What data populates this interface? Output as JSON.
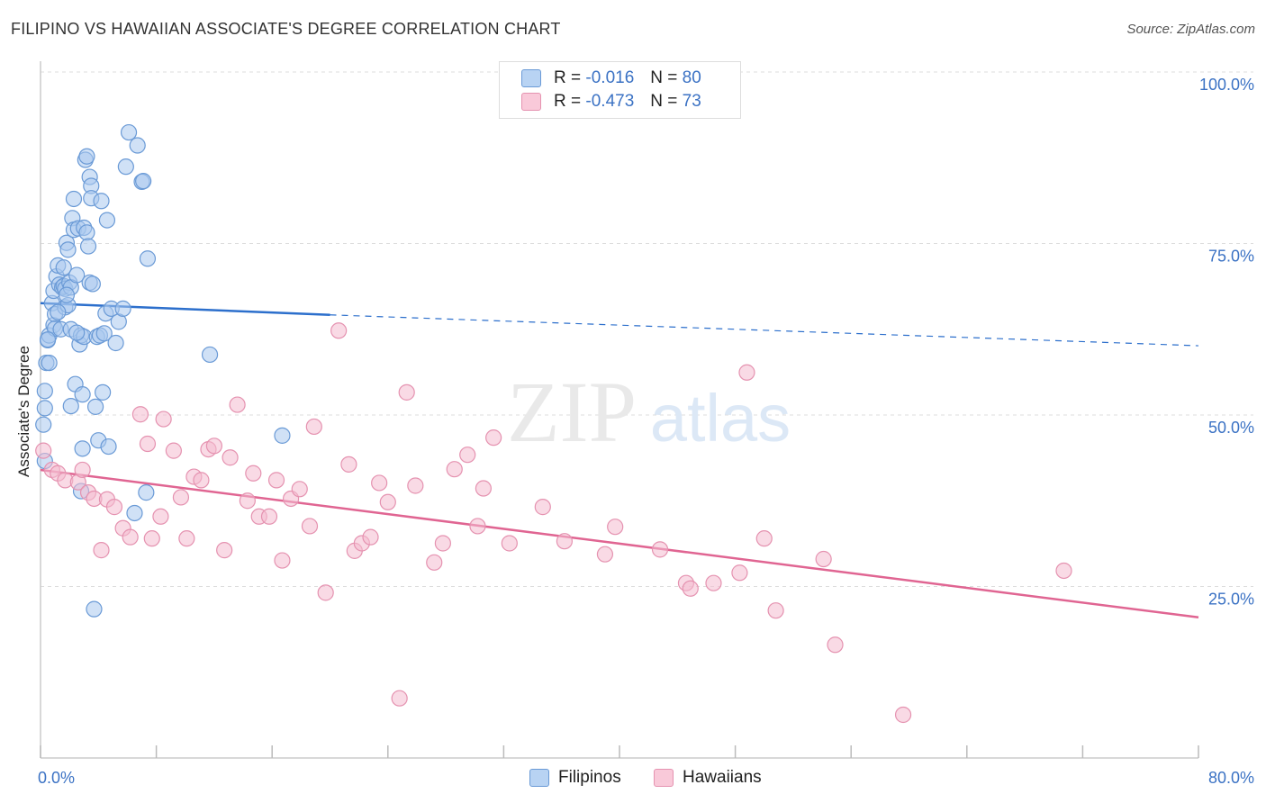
{
  "title": "FILIPINO VS HAWAIIAN ASSOCIATE'S DEGREE CORRELATION CHART",
  "source": "Source: ZipAtlas.com",
  "watermark": {
    "zip": "ZIP",
    "atlas": "atlas"
  },
  "legend": {
    "rows": [
      {
        "r_label": "R =",
        "r_value": "-0.016",
        "n_label": "N =",
        "n_value": "80"
      },
      {
        "r_label": "R =",
        "r_value": "-0.473",
        "n_label": "N =",
        "n_value": "73"
      }
    ]
  },
  "colors": {
    "blue_fill": "#a9c8ef",
    "blue_stroke": "#6a9ad6",
    "blue_line": "#2c6fcc",
    "pink_fill": "#f4bcd0",
    "pink_stroke": "#e592b0",
    "pink_line": "#e06592",
    "axis_text": "#3b72c4",
    "grid": "#dddddd"
  },
  "chart_data": {
    "type": "scatter",
    "title": "FILIPINO VS HAWAIIAN ASSOCIATE'S DEGREE CORRELATION CHART",
    "xlabel": "",
    "ylabel": "Associate's Degree",
    "xlim": [
      0,
      80
    ],
    "ylim": [
      0,
      100
    ],
    "x_tick_labels": [
      "0.0%",
      "80.0%"
    ],
    "y_tick_labels": [
      "25.0%",
      "50.0%",
      "75.0%",
      "100.0%"
    ],
    "y_ticks": [
      25,
      50,
      75,
      100
    ],
    "legend_position": "top-center",
    "series": [
      {
        "name": "Filipinos",
        "r": -0.016,
        "n": 80,
        "trend": {
          "x0": 0,
          "y0": 66.3,
          "x1": 20,
          "y1": 64.6,
          "dash_to_x": 80,
          "dash_to_y": 60.1
        },
        "points": [
          [
            0.2,
            48.6
          ],
          [
            0.3,
            43.3
          ],
          [
            0.3,
            51.0
          ],
          [
            0.3,
            53.5
          ],
          [
            0.4,
            57.6
          ],
          [
            0.5,
            60.9
          ],
          [
            0.6,
            61.6
          ],
          [
            0.6,
            57.6
          ],
          [
            0.8,
            66.3
          ],
          [
            0.9,
            68.1
          ],
          [
            0.9,
            63.1
          ],
          [
            1.0,
            64.7
          ],
          [
            1.0,
            62.6
          ],
          [
            1.1,
            70.2
          ],
          [
            1.2,
            71.8
          ],
          [
            1.3,
            69.0
          ],
          [
            1.4,
            62.5
          ],
          [
            1.5,
            68.6
          ],
          [
            1.6,
            71.5
          ],
          [
            1.6,
            68.8
          ],
          [
            1.7,
            65.7
          ],
          [
            1.7,
            68.4
          ],
          [
            1.8,
            75.1
          ],
          [
            1.9,
            74.1
          ],
          [
            1.9,
            66.0
          ],
          [
            2.0,
            69.3
          ],
          [
            2.1,
            68.6
          ],
          [
            2.1,
            62.5
          ],
          [
            2.1,
            51.3
          ],
          [
            2.2,
            78.7
          ],
          [
            2.3,
            81.5
          ],
          [
            2.3,
            77.0
          ],
          [
            2.4,
            54.5
          ],
          [
            2.5,
            70.4
          ],
          [
            2.6,
            77.2
          ],
          [
            2.7,
            60.3
          ],
          [
            2.8,
            61.6
          ],
          [
            2.8,
            38.9
          ],
          [
            2.9,
            53.0
          ],
          [
            2.9,
            45.1
          ],
          [
            3.0,
            77.3
          ],
          [
            3.0,
            61.4
          ],
          [
            3.1,
            87.2
          ],
          [
            3.2,
            87.7
          ],
          [
            3.2,
            76.6
          ],
          [
            3.3,
            74.6
          ],
          [
            3.4,
            69.3
          ],
          [
            3.4,
            84.7
          ],
          [
            3.5,
            83.4
          ],
          [
            3.5,
            81.6
          ],
          [
            3.6,
            69.1
          ],
          [
            3.7,
            21.7
          ],
          [
            3.8,
            51.2
          ],
          [
            3.9,
            61.4
          ],
          [
            4.0,
            46.3
          ],
          [
            4.1,
            61.6
          ],
          [
            4.2,
            81.2
          ],
          [
            4.3,
            53.3
          ],
          [
            4.4,
            61.9
          ],
          [
            4.5,
            64.8
          ],
          [
            4.6,
            78.4
          ],
          [
            4.7,
            45.4
          ],
          [
            4.9,
            65.5
          ],
          [
            5.2,
            60.5
          ],
          [
            5.4,
            63.6
          ],
          [
            5.7,
            65.5
          ],
          [
            5.9,
            86.2
          ],
          [
            6.1,
            91.2
          ],
          [
            6.5,
            35.7
          ],
          [
            6.7,
            89.3
          ],
          [
            7.0,
            84.0
          ],
          [
            7.1,
            84.1
          ],
          [
            7.3,
            38.7
          ],
          [
            7.4,
            72.8
          ],
          [
            11.7,
            58.8
          ],
          [
            16.7,
            47.0
          ],
          [
            0.5,
            61.0
          ],
          [
            1.2,
            65.0
          ],
          [
            2.5,
            62.0
          ],
          [
            1.8,
            67.5
          ]
        ]
      },
      {
        "name": "Hawaiians",
        "r": -0.473,
        "n": 73,
        "trend": {
          "x0": 0,
          "y0": 42.0,
          "x1": 80,
          "y1": 20.5
        },
        "points": [
          [
            0.2,
            44.8
          ],
          [
            0.8,
            42.0
          ],
          [
            1.2,
            41.5
          ],
          [
            1.7,
            40.5
          ],
          [
            2.6,
            40.2
          ],
          [
            2.9,
            42.0
          ],
          [
            3.3,
            38.7
          ],
          [
            3.7,
            37.8
          ],
          [
            4.2,
            30.3
          ],
          [
            4.6,
            37.7
          ],
          [
            5.1,
            36.6
          ],
          [
            5.7,
            33.5
          ],
          [
            6.2,
            32.2
          ],
          [
            6.9,
            50.1
          ],
          [
            7.4,
            45.8
          ],
          [
            7.7,
            32.0
          ],
          [
            8.3,
            35.2
          ],
          [
            8.5,
            49.4
          ],
          [
            9.2,
            44.8
          ],
          [
            9.7,
            38.0
          ],
          [
            10.1,
            32.0
          ],
          [
            10.6,
            41.0
          ],
          [
            11.1,
            40.5
          ],
          [
            11.6,
            45.0
          ],
          [
            12.0,
            45.5
          ],
          [
            12.7,
            30.3
          ],
          [
            13.1,
            43.8
          ],
          [
            13.6,
            51.5
          ],
          [
            14.3,
            37.5
          ],
          [
            14.7,
            41.5
          ],
          [
            15.1,
            35.2
          ],
          [
            15.8,
            35.2
          ],
          [
            16.3,
            40.5
          ],
          [
            16.7,
            28.8
          ],
          [
            17.3,
            37.8
          ],
          [
            17.9,
            39.2
          ],
          [
            18.6,
            33.8
          ],
          [
            18.9,
            48.3
          ],
          [
            19.7,
            24.1
          ],
          [
            20.6,
            62.3
          ],
          [
            21.3,
            42.8
          ],
          [
            21.7,
            30.2
          ],
          [
            22.2,
            31.3
          ],
          [
            22.8,
            32.2
          ],
          [
            23.4,
            40.1
          ],
          [
            24.0,
            37.3
          ],
          [
            24.8,
            8.7
          ],
          [
            25.3,
            53.3
          ],
          [
            25.9,
            39.7
          ],
          [
            27.2,
            28.5
          ],
          [
            27.8,
            31.3
          ],
          [
            28.6,
            42.1
          ],
          [
            29.5,
            44.2
          ],
          [
            30.2,
            33.8
          ],
          [
            30.6,
            39.3
          ],
          [
            31.3,
            46.7
          ],
          [
            32.4,
            31.3
          ],
          [
            34.7,
            36.6
          ],
          [
            36.2,
            31.6
          ],
          [
            39.0,
            29.7
          ],
          [
            39.7,
            33.7
          ],
          [
            42.8,
            30.4
          ],
          [
            44.6,
            25.5
          ],
          [
            44.9,
            24.7
          ],
          [
            46.5,
            25.5
          ],
          [
            48.3,
            27.0
          ],
          [
            48.8,
            56.2
          ],
          [
            50.0,
            32.0
          ],
          [
            50.8,
            21.5
          ],
          [
            54.1,
            29.0
          ],
          [
            54.9,
            16.5
          ],
          [
            59.6,
            6.3
          ],
          [
            70.7,
            27.3
          ]
        ]
      }
    ]
  },
  "bottom_legend": [
    {
      "label": "Filipinos"
    },
    {
      "label": "Hawaiians"
    }
  ]
}
